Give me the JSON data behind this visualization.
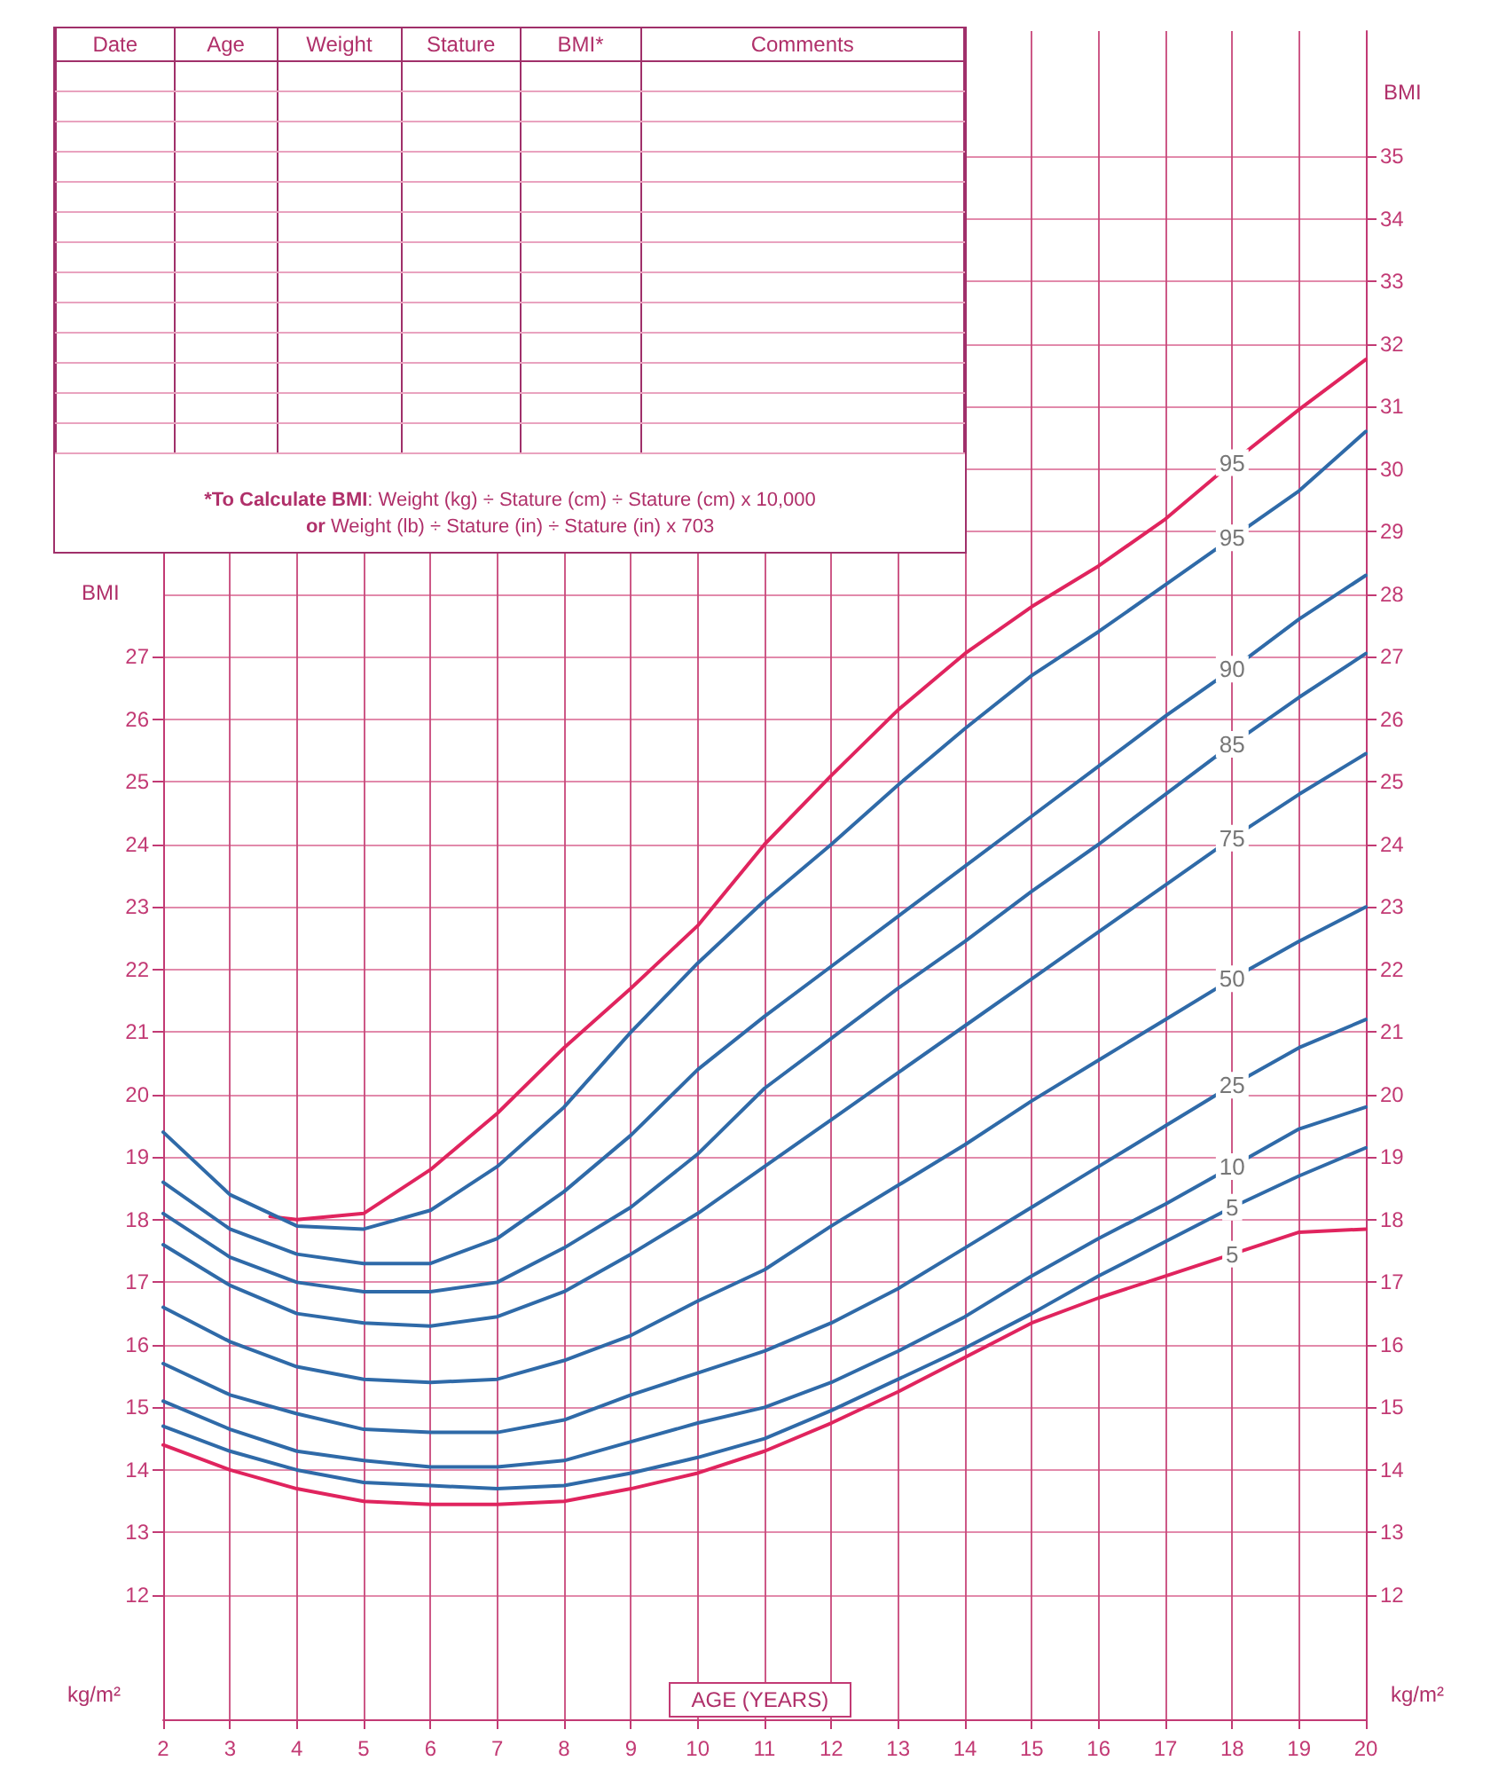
{
  "chart_data": {
    "type": "line",
    "xlabel": "AGE (YEARS)",
    "ylabel": "BMI",
    "y2label": "BMI",
    "annotations": [
      "Date",
      "Age",
      "Weight",
      "Stature",
      "BMI*",
      "Comments",
      "*To Calculate BMI",
      ": Weight (kg) ÷ Stature (cm) ÷ Stature (cm) x 10,000",
      "or",
      "Weight (lb) ÷ Stature (in) ÷ Stature (in) x 703",
      "kg/m²",
      "kg/m²"
    ],
    "x": [
      2,
      3,
      4,
      5,
      6,
      7,
      8,
      9,
      10,
      11,
      12,
      13,
      14,
      15,
      16,
      17,
      18,
      19,
      20
    ],
    "xlim": [
      2,
      20
    ],
    "xticks": [
      2,
      3,
      4,
      5,
      6,
      7,
      8,
      9,
      10,
      11,
      12,
      13,
      14,
      15,
      16,
      17,
      18,
      19,
      20
    ],
    "ylim": [
      10,
      37
    ],
    "yticks": [
      12,
      13,
      14,
      15,
      16,
      17,
      18,
      19,
      20,
      21,
      22,
      23,
      24,
      25,
      26,
      27
    ],
    "y2lim": [
      10,
      37
    ],
    "y2ticks": [
      12,
      13,
      14,
      15,
      16,
      17,
      18,
      19,
      20,
      21,
      22,
      23,
      24,
      25,
      26,
      27,
      28,
      29,
      30,
      31,
      32,
      33,
      34,
      35
    ],
    "grid": true,
    "legend": false,
    "marker": "none",
    "line_style": "solid",
    "series": [
      {
        "name": "95",
        "color": "#e0245e",
        "x": [
          3.6,
          4,
          5,
          6,
          7,
          8,
          9,
          10,
          11,
          12,
          13,
          14,
          15,
          16,
          17,
          18,
          19,
          20
        ],
        "values": [
          18.05,
          18.0,
          18.1,
          18.8,
          19.7,
          20.75,
          21.7,
          22.7,
          24.0,
          25.1,
          26.15,
          27.05,
          27.8,
          28.45,
          29.2,
          30.1,
          30.95,
          31.75
        ]
      },
      {
        "name": "95",
        "color": "#2f6aa8",
        "values": [
          19.4,
          18.4,
          17.9,
          17.85,
          18.15,
          18.85,
          19.8,
          21.0,
          22.1,
          23.1,
          24.0,
          24.95,
          25.85,
          26.7,
          27.4,
          28.15,
          28.9,
          29.65,
          30.6
        ]
      },
      {
        "name": "90",
        "color": "#2f6aa8",
        "values": [
          18.6,
          17.85,
          17.45,
          17.3,
          17.3,
          17.7,
          18.45,
          19.35,
          20.4,
          21.25,
          22.05,
          22.85,
          23.65,
          24.45,
          25.25,
          26.05,
          26.8,
          27.6,
          28.3
        ]
      },
      {
        "name": "85",
        "color": "#2f6aa8",
        "values": [
          18.1,
          17.4,
          17.0,
          16.85,
          16.85,
          17.0,
          17.55,
          18.2,
          19.05,
          20.1,
          20.9,
          21.7,
          22.45,
          23.25,
          24.0,
          24.8,
          25.6,
          26.35,
          27.05
        ]
      },
      {
        "name": "75",
        "color": "#2f6aa8",
        "values": [
          17.6,
          16.95,
          16.5,
          16.35,
          16.3,
          16.45,
          16.85,
          17.45,
          18.1,
          18.85,
          19.6,
          20.35,
          21.1,
          21.85,
          22.6,
          23.35,
          24.1,
          24.8,
          25.45
        ]
      },
      {
        "name": "50",
        "color": "#2f6aa8",
        "values": [
          16.6,
          16.05,
          15.65,
          15.45,
          15.4,
          15.45,
          15.75,
          16.15,
          16.7,
          17.2,
          17.9,
          18.55,
          19.2,
          19.9,
          20.55,
          21.2,
          21.85,
          22.45,
          23.0
        ]
      },
      {
        "name": "25",
        "color": "#2f6aa8",
        "values": [
          15.7,
          15.2,
          14.9,
          14.65,
          14.6,
          14.6,
          14.8,
          15.2,
          15.55,
          15.9,
          16.35,
          16.9,
          17.55,
          18.2,
          18.85,
          19.5,
          20.15,
          20.75,
          21.2
        ]
      },
      {
        "name": "10",
        "color": "#2f6aa8",
        "values": [
          15.1,
          14.65,
          14.3,
          14.15,
          14.05,
          14.05,
          14.15,
          14.45,
          14.75,
          15.0,
          15.4,
          15.9,
          16.45,
          17.1,
          17.7,
          18.25,
          18.85,
          19.45,
          19.8
        ]
      },
      {
        "name": "5",
        "color": "#2f6aa8",
        "values": [
          14.7,
          14.3,
          14.0,
          13.8,
          13.75,
          13.7,
          13.75,
          13.95,
          14.2,
          14.5,
          14.95,
          15.45,
          15.95,
          16.5,
          17.1,
          17.65,
          18.2,
          18.7,
          19.15
        ]
      },
      {
        "name": "5",
        "color": "#e0245e",
        "values": [
          14.4,
          14.0,
          13.7,
          13.5,
          13.45,
          13.45,
          13.5,
          13.7,
          13.95,
          14.3,
          14.75,
          15.25,
          15.8,
          16.35,
          16.75,
          17.1,
          17.45,
          17.8,
          17.85
        ]
      }
    ]
  }
}
